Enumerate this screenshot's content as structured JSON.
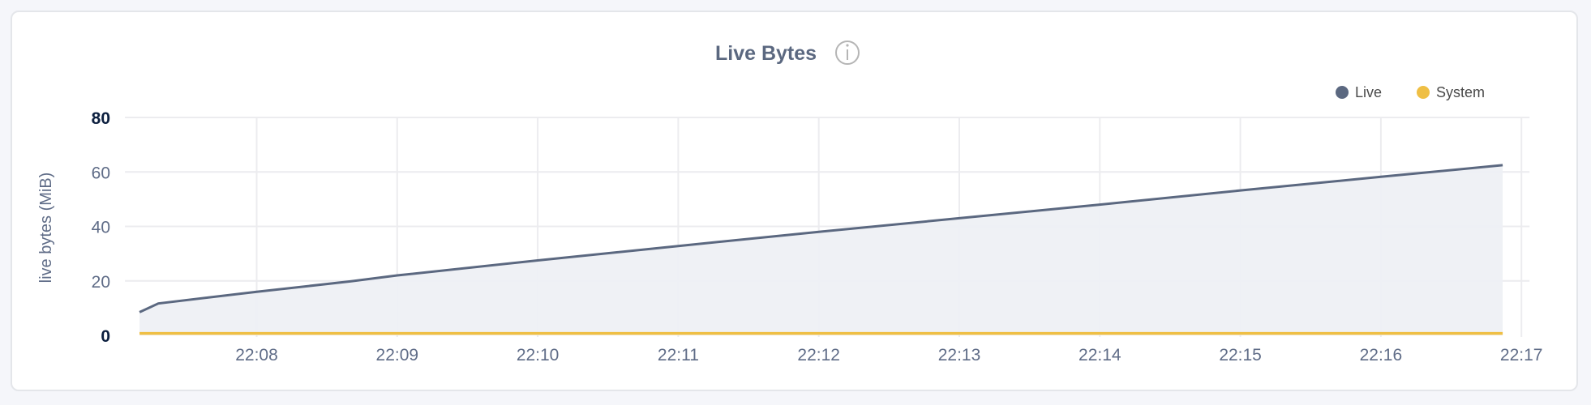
{
  "chart_data": {
    "type": "area",
    "title": "Live Bytes",
    "ylabel": "live bytes (MiB)",
    "xlabel": "",
    "ylim": [
      0,
      80
    ],
    "y_ticks": [
      "0",
      "20",
      "40",
      "60",
      "80"
    ],
    "x_ticks": [
      "22:08",
      "22:09",
      "22:10",
      "22:11",
      "22:12",
      "22:13",
      "22:14",
      "22:15",
      "22:16",
      "22:17"
    ],
    "xlim": [
      "22:07:10",
      "22:17:00"
    ],
    "grid": true,
    "legend_position": "top-right",
    "info_icon": "info-circle-icon",
    "series": [
      {
        "name": "Live",
        "color": "#5b6880",
        "fill": "#eef0f4",
        "x": [
          "22:07:10",
          "22:07:18",
          "22:08:00",
          "22:08:40",
          "22:09:00",
          "22:10:00",
          "22:11:00",
          "22:12:00",
          "22:13:00",
          "22:14:00",
          "22:15:00",
          "22:16:00",
          "22:16:52"
        ],
        "values": [
          8.5,
          11.7,
          16,
          19.8,
          22,
          27.5,
          32.8,
          38,
          43,
          48,
          53.2,
          58.2,
          62.5
        ]
      },
      {
        "name": "System",
        "color": "#efbf44",
        "x": [
          "22:07:10",
          "22:16:52"
        ],
        "values": [
          0.7,
          0.7
        ]
      }
    ]
  }
}
